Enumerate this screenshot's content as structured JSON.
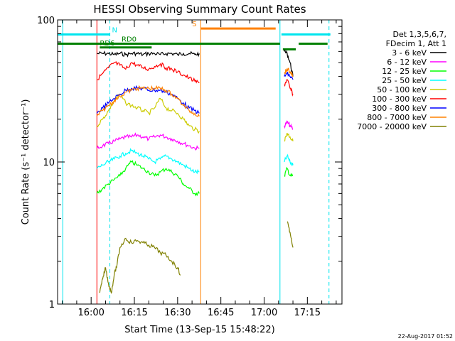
{
  "chart_data": {
    "type": "line",
    "title": "HESSI Observing Summary Count Rates",
    "xlabel": "Start Time (13-Sep-15 15:48:22)",
    "ylabel": "Count Rate (s⁻¹ detector⁻¹)",
    "x_ticks": [
      "16:00",
      "16:15",
      "16:30",
      "16:45",
      "17:00",
      "17:15"
    ],
    "y_ticks": [
      "1",
      "10",
      "100"
    ],
    "xlim": [
      "15:48:22",
      "17:27:00"
    ],
    "ylim": [
      1,
      100
    ],
    "y_scale": "log",
    "legend_header": [
      "Det 1,3,5,6,7,",
      "FDecim 1, Att 1"
    ],
    "footer_date": "22-Aug-2017 01:52",
    "flags": [
      {
        "label": "N",
        "color": "#00e5ee",
        "x_start": "15:48:22",
        "x_end": "16:06:30",
        "y": 79
      },
      {
        "label": "",
        "color": "#00e5ee",
        "x_start": "17:06:00",
        "x_end": "17:23:00",
        "y": 79
      },
      {
        "label": "S",
        "color": "#ff8000",
        "x_start": "16:38:00",
        "x_end": "17:04:00",
        "y": 87
      },
      {
        "label": "RD0",
        "color": "#008000",
        "x_start": "15:48:22",
        "x_end": "17:05:30",
        "y": 68
      },
      {
        "label": "RD6",
        "color": "#008000",
        "x_start": "16:03:00",
        "x_end": "16:21:00",
        "y": 64
      },
      {
        "label": "",
        "color": "#008000",
        "x_start": "17:06:30",
        "x_end": "17:11:00",
        "y": 62
      },
      {
        "label": "",
        "color": "#008000",
        "x_start": "17:12:00",
        "x_end": "17:22:00",
        "y": 68
      }
    ],
    "vlines": [
      {
        "x": "15:50:10",
        "color": "#00e5ee",
        "style": "solid"
      },
      {
        "x": "16:02:00",
        "color": "#ff0000",
        "style": "solid"
      },
      {
        "x": "16:06:30",
        "color": "#00e5ee",
        "style": "dashed"
      },
      {
        "x": "16:38:00",
        "color": "#ff8000",
        "style": "solid"
      },
      {
        "x": "17:05:30",
        "color": "#00e5ee",
        "style": "solid"
      },
      {
        "x": "17:22:30",
        "color": "#00e5ee",
        "style": "dashed"
      }
    ],
    "series": [
      {
        "name": "3 - 6 keV",
        "color": "#000000",
        "segments": [
          {
            "x": [
              "16:02",
              "16:04",
              "16:06",
              "16:08",
              "16:10",
              "16:12",
              "16:14",
              "16:16",
              "16:18",
              "16:20",
              "16:22",
              "16:24",
              "16:26",
              "16:28",
              "16:30",
              "16:32",
              "16:34",
              "16:36",
              "16:37:30"
            ],
            "y": [
              58,
              58,
              58,
              57,
              58,
              57,
              58,
              58,
              57,
              58,
              58,
              57,
              58,
              58,
              57,
              58,
              58,
              57,
              58
            ]
          },
          {
            "x": [
              "17:07",
              "17:08",
              "17:09",
              "17:10"
            ],
            "y": [
              60,
              58,
              50,
              40
            ]
          }
        ]
      },
      {
        "name": "6 - 12 keV",
        "color": "#ff00ff",
        "segments": [
          {
            "x": [
              "16:02",
              "16:04",
              "16:06",
              "16:08",
              "16:10",
              "16:12",
              "16:14",
              "16:16",
              "16:18",
              "16:20",
              "16:22",
              "16:24",
              "16:26",
              "16:28",
              "16:30",
              "16:32",
              "16:34",
              "16:36",
              "16:37:30"
            ],
            "y": [
              12.5,
              13,
              13.5,
              14,
              14.5,
              15,
              15,
              15.5,
              15,
              14.5,
              15,
              15.5,
              15,
              14.5,
              14,
              13.5,
              13,
              12.5,
              12.5
            ]
          },
          {
            "x": [
              "17:07",
              "17:08",
              "17:09",
              "17:10"
            ],
            "y": [
              18,
              19,
              18,
              17
            ]
          }
        ]
      },
      {
        "name": "12 - 25 keV",
        "color": "#00ff00",
        "segments": [
          {
            "x": [
              "16:02",
              "16:04",
              "16:06",
              "16:08",
              "16:10",
              "16:12",
              "16:14",
              "16:16",
              "16:18",
              "16:20",
              "16:22",
              "16:24",
              "16:26",
              "16:28",
              "16:30",
              "16:32",
              "16:34",
              "16:36",
              "16:37:30"
            ],
            "y": [
              6,
              6.5,
              7,
              7.5,
              8,
              9,
              10,
              9.5,
              9,
              8.5,
              8,
              8.5,
              9,
              8.5,
              8,
              7,
              6.5,
              6,
              6
            ]
          },
          {
            "x": [
              "17:07",
              "17:08",
              "17:09",
              "17:10"
            ],
            "y": [
              8,
              9,
              8,
              8
            ]
          }
        ]
      },
      {
        "name": "25 - 50 keV",
        "color": "#00ffff",
        "segments": [
          {
            "x": [
              "16:02",
              "16:04",
              "16:06",
              "16:08",
              "16:10",
              "16:12",
              "16:14",
              "16:16",
              "16:18",
              "16:20",
              "16:22",
              "16:24",
              "16:26",
              "16:28",
              "16:30",
              "16:32",
              "16:34",
              "16:36",
              "16:37:30"
            ],
            "y": [
              9,
              9.5,
              10,
              10.5,
              11,
              11.5,
              12,
              11.5,
              11,
              10.5,
              10,
              10.5,
              11,
              10.5,
              10,
              9.5,
              9,
              8.5,
              8.5
            ]
          },
          {
            "x": [
              "17:07",
              "17:08",
              "17:09",
              "17:10"
            ],
            "y": [
              10,
              11,
              10,
              9.5
            ]
          }
        ]
      },
      {
        "name": "50 - 100 keV",
        "color": "#cccc00",
        "segments": [
          {
            "x": [
              "16:02",
              "16:04",
              "16:06",
              "16:08",
              "16:10",
              "16:12",
              "16:14",
              "16:16",
              "16:18",
              "16:20",
              "16:22",
              "16:24",
              "16:26",
              "16:28",
              "16:30",
              "16:32",
              "16:34",
              "16:36",
              "16:37:30"
            ],
            "y": [
              18,
              20,
              23,
              27,
              30,
              26,
              25,
              24,
              23,
              22,
              24,
              28,
              24,
              23,
              22,
              20,
              18,
              17,
              16.5
            ]
          },
          {
            "x": [
              "17:07",
              "17:08",
              "17:09",
              "17:10"
            ],
            "y": [
              14,
              16,
              15,
              14
            ]
          }
        ]
      },
      {
        "name": "100 - 300 keV",
        "color": "#ff0000",
        "segments": [
          {
            "x": [
              "16:02",
              "16:04",
              "16:06",
              "16:08",
              "16:10",
              "16:12",
              "16:14",
              "16:16",
              "16:18",
              "16:20",
              "16:22",
              "16:24",
              "16:26",
              "16:28",
              "16:30",
              "16:32",
              "16:34",
              "16:36",
              "16:37:30"
            ],
            "y": [
              38,
              42,
              46,
              50,
              48,
              45,
              50,
              48,
              46,
              45,
              47,
              49,
              46,
              45,
              43,
              41,
              39,
              37,
              36
            ]
          },
          {
            "x": [
              "17:07",
              "17:08",
              "17:09",
              "17:10"
            ],
            "y": [
              35,
              38,
              33,
              30
            ]
          }
        ]
      },
      {
        "name": "300 - 800 keV",
        "color": "#0000ff",
        "segments": [
          {
            "x": [
              "16:02",
              "16:04",
              "16:06",
              "16:08",
              "16:10",
              "16:12",
              "16:14",
              "16:16",
              "16:18",
              "16:20",
              "16:22",
              "16:24",
              "16:26",
              "16:28",
              "16:30",
              "16:32",
              "16:34",
              "16:36",
              "16:37:30"
            ],
            "y": [
              22,
              24,
              26,
              28,
              30,
              32,
              33,
              33,
              33,
              32,
              32,
              32,
              31,
              30,
              28,
              26,
              24,
              23,
              22
            ]
          },
          {
            "x": [
              "17:07",
              "17:08",
              "17:09",
              "17:10"
            ],
            "y": [
              40,
              42,
              40,
              38
            ]
          }
        ]
      },
      {
        "name": "800 - 7000 keV",
        "color": "#ff8000",
        "segments": [
          {
            "x": [
              "16:02",
              "16:04",
              "16:06",
              "16:08",
              "16:10",
              "16:12",
              "16:14",
              "16:16",
              "16:18",
              "16:20",
              "16:22",
              "16:24",
              "16:26",
              "16:28",
              "16:30",
              "16:32",
              "16:34",
              "16:36",
              "16:37:30"
            ],
            "y": [
              21,
              23,
              25,
              27,
              29,
              31,
              32,
              33,
              33,
              33,
              33,
              33,
              32,
              30,
              28,
              25,
              23,
              22,
              21
            ]
          },
          {
            "x": [
              "17:07",
              "17:08",
              "17:09",
              "17:10"
            ],
            "y": [
              42,
              45,
              43,
              41
            ]
          }
        ]
      },
      {
        "name": "7000 - 20000 keV",
        "color": "#808000",
        "segments": [
          {
            "x": [
              "16:03",
              "16:04",
              "16:05",
              "16:06",
              "16:07",
              "16:08",
              "16:09",
              "16:10",
              "16:12",
              "16:14",
              "16:16",
              "16:18",
              "16:20",
              "16:22",
              "16:24",
              "16:26",
              "16:28",
              "16:30",
              "16:31"
            ],
            "y": [
              1.2,
              1.5,
              1.8,
              1.4,
              1.2,
              1.6,
              1.9,
              2.5,
              2.9,
              2.7,
              2.8,
              2.7,
              2.6,
              2.5,
              2.3,
              2.2,
              2.0,
              1.8,
              1.6
            ]
          },
          {
            "x": [
              "17:08",
              "17:09",
              "17:10"
            ],
            "y": [
              3.8,
              3.2,
              2.5
            ]
          }
        ]
      }
    ]
  }
}
